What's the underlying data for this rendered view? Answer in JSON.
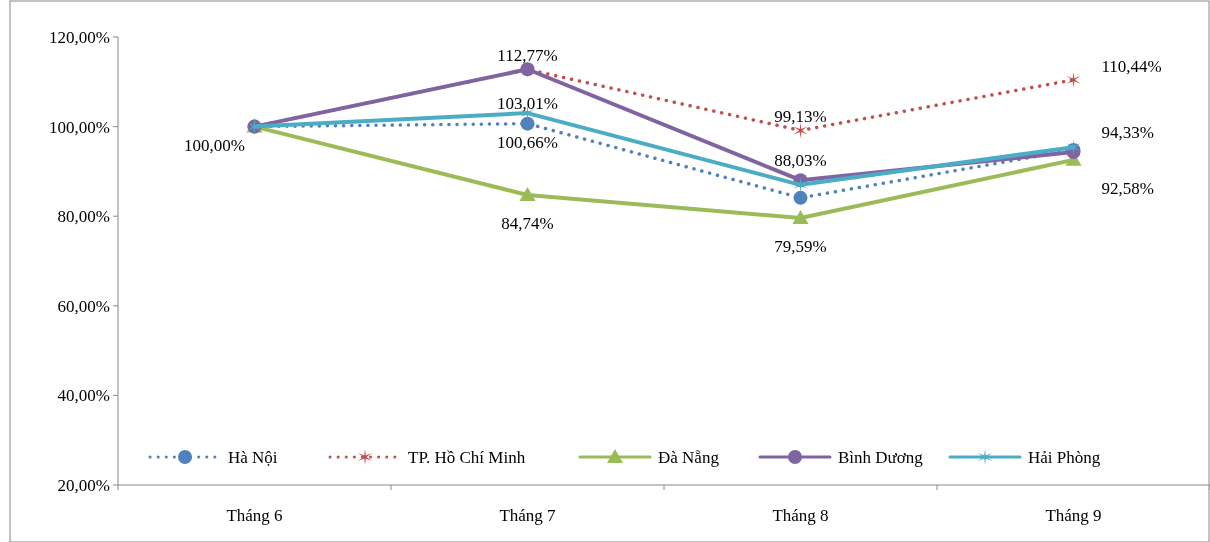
{
  "chart_data": {
    "type": "line",
    "categories": [
      "Tháng 6",
      "Tháng 7",
      "Tháng 8",
      "Tháng 9"
    ],
    "ylim": [
      20,
      120
    ],
    "yticks": [
      {
        "value": 20,
        "label": "20,00%"
      },
      {
        "value": 40,
        "label": "40,00%"
      },
      {
        "value": 60,
        "label": "60,00%"
      },
      {
        "value": 80,
        "label": "80,00%"
      },
      {
        "value": 100,
        "label": "100,00%"
      },
      {
        "value": 120,
        "label": "120,00%"
      }
    ],
    "grid": false,
    "legend": "bottom",
    "series": [
      {
        "name": "Hà Nội",
        "color": "#4f81bd",
        "marker": "circle",
        "line_style": "dotted",
        "values": [
          100,
          100.66,
          84.1,
          94.8
        ],
        "value_labels": [
          "100,00%",
          "100,66%",
          null,
          null
        ]
      },
      {
        "name": "TP. Hồ Chí Minh",
        "color": "#c0504d",
        "marker": "cross",
        "line_style": "dotted",
        "values": [
          100,
          112.77,
          99.13,
          110.44
        ],
        "value_labels": [
          null,
          "112,77%",
          "99,13%",
          "110,44%"
        ]
      },
      {
        "name": "Đà Nẵng",
        "color": "#9bbb59",
        "marker": "triangle",
        "line_style": "solid",
        "values": [
          100,
          84.74,
          79.59,
          92.58
        ],
        "value_labels": [
          null,
          "84,74%",
          "79,59%",
          "92,58%"
        ]
      },
      {
        "name": "Bình Dương",
        "color": "#8064a2",
        "marker": "circle",
        "line_style": "solid",
        "values": [
          100,
          112.8,
          88.03,
          94.33
        ],
        "value_labels": [
          null,
          null,
          "88,03%",
          "94,33%"
        ]
      },
      {
        "name": "Hải Phòng",
        "color": "#4bacc6",
        "marker": "cross",
        "line_style": "solid",
        "values": [
          100,
          103.01,
          87,
          95.4
        ],
        "value_labels": [
          null,
          "103,01%",
          null,
          null
        ]
      }
    ]
  }
}
